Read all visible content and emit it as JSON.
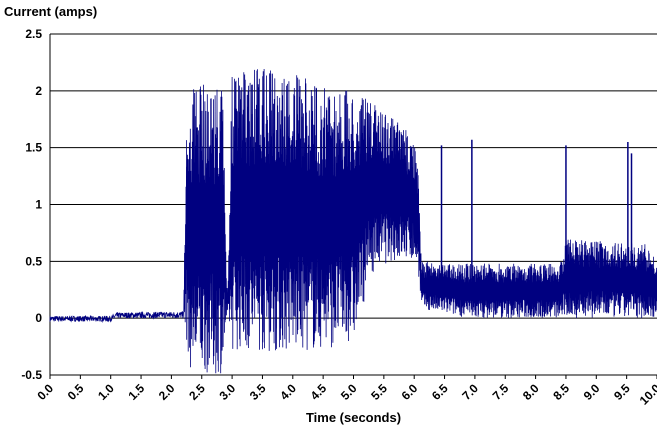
{
  "chart_data": {
    "type": "line",
    "title": "Current (amps)",
    "xlabel": "Time (seconds)",
    "ylabel": "Current (amps)",
    "xlim": [
      0.0,
      10.0
    ],
    "ylim": [
      -0.5,
      2.5
    ],
    "x_ticks": [
      "0.0",
      "0.5",
      "1.0",
      "1.5",
      "2.0",
      "2.5",
      "3.0",
      "3.5",
      "4.0",
      "4.5",
      "5.0",
      "5.5",
      "6.0",
      "6.5",
      "7.0",
      "7.5",
      "8.0",
      "8.5",
      "9.0",
      "9.5",
      "10.0"
    ],
    "y_ticks": [
      "-0.5",
      "0",
      "0.5",
      "1",
      "1.5",
      "2",
      "2.5"
    ],
    "grid": "horizontal",
    "series_color": "#000080",
    "envelope": [
      {
        "x": 0.0,
        "low": -0.03,
        "high": 0.02
      },
      {
        "x": 1.0,
        "low": -0.03,
        "high": 0.02
      },
      {
        "x": 1.1,
        "low": 0.0,
        "high": 0.05
      },
      {
        "x": 2.2,
        "low": 0.0,
        "high": 0.06
      },
      {
        "x": 2.25,
        "low": -0.2,
        "high": 1.85
      },
      {
        "x": 2.3,
        "low": -0.45,
        "high": 2.05
      },
      {
        "x": 2.7,
        "low": -0.5,
        "high": 2.08
      },
      {
        "x": 2.85,
        "low": -0.48,
        "high": 2.05
      },
      {
        "x": 2.92,
        "low": 0.05,
        "high": 0.08
      },
      {
        "x": 3.0,
        "low": -0.28,
        "high": 2.15
      },
      {
        "x": 3.5,
        "low": -0.3,
        "high": 2.2
      },
      {
        "x": 4.0,
        "low": -0.3,
        "high": 2.15
      },
      {
        "x": 4.5,
        "low": -0.28,
        "high": 2.05
      },
      {
        "x": 5.0,
        "low": -0.2,
        "high": 2.0
      },
      {
        "x": 5.3,
        "low": 0.4,
        "high": 1.9
      },
      {
        "x": 5.6,
        "low": 0.5,
        "high": 1.8
      },
      {
        "x": 6.0,
        "low": 0.5,
        "high": 1.6
      },
      {
        "x": 6.07,
        "low": 0.4,
        "high": 1.25
      },
      {
        "x": 6.12,
        "low": 0.08,
        "high": 0.5
      },
      {
        "x": 6.9,
        "low": 0.0,
        "high": 0.48
      },
      {
        "x": 8.4,
        "low": 0.0,
        "high": 0.48
      },
      {
        "x": 8.5,
        "low": 0.0,
        "high": 0.7
      },
      {
        "x": 9.8,
        "low": 0.0,
        "high": 0.65
      },
      {
        "x": 10.0,
        "low": 0.0,
        "high": 0.5
      }
    ],
    "spikes": [
      {
        "x": 6.45,
        "peak": 1.52
      },
      {
        "x": 6.95,
        "peak": 1.57
      },
      {
        "x": 8.5,
        "peak": 1.52
      },
      {
        "x": 9.52,
        "peak": 1.55
      },
      {
        "x": 9.58,
        "peak": 1.45
      }
    ]
  }
}
